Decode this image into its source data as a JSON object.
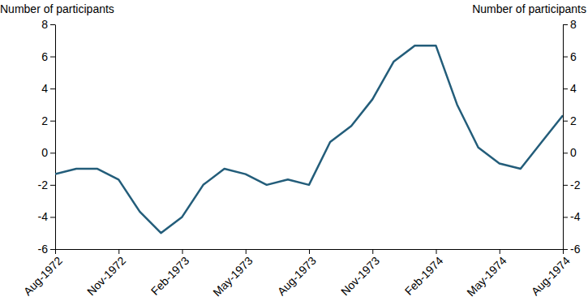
{
  "chart_data": {
    "type": "line",
    "ylabel": "Number of participants",
    "categories": [
      "Aug-1972",
      null,
      null,
      "Nov-1972",
      null,
      null,
      "Feb-1973",
      null,
      null,
      "May-1973",
      null,
      null,
      "Aug-1973",
      null,
      null,
      "Nov-1973",
      null,
      null,
      "Feb-1974",
      null,
      null,
      "May-1974",
      null,
      null,
      "Aug-1974"
    ],
    "values": [
      -1.33,
      -1,
      -1,
      -1.67,
      -3.67,
      -5,
      -4,
      -2,
      -1,
      -1.33,
      -2,
      -1.67,
      -2,
      0.67,
      1.67,
      3.33,
      5.67,
      6.67,
      6.67,
      3,
      0.33,
      -0.67,
      -1,
      0.67,
      2.33
    ],
    "color": "#235d7a",
    "ylim": [
      -6,
      8
    ],
    "yticks": [
      -6,
      -4,
      -2,
      0,
      2,
      4,
      6,
      8
    ],
    "grid": false
  }
}
